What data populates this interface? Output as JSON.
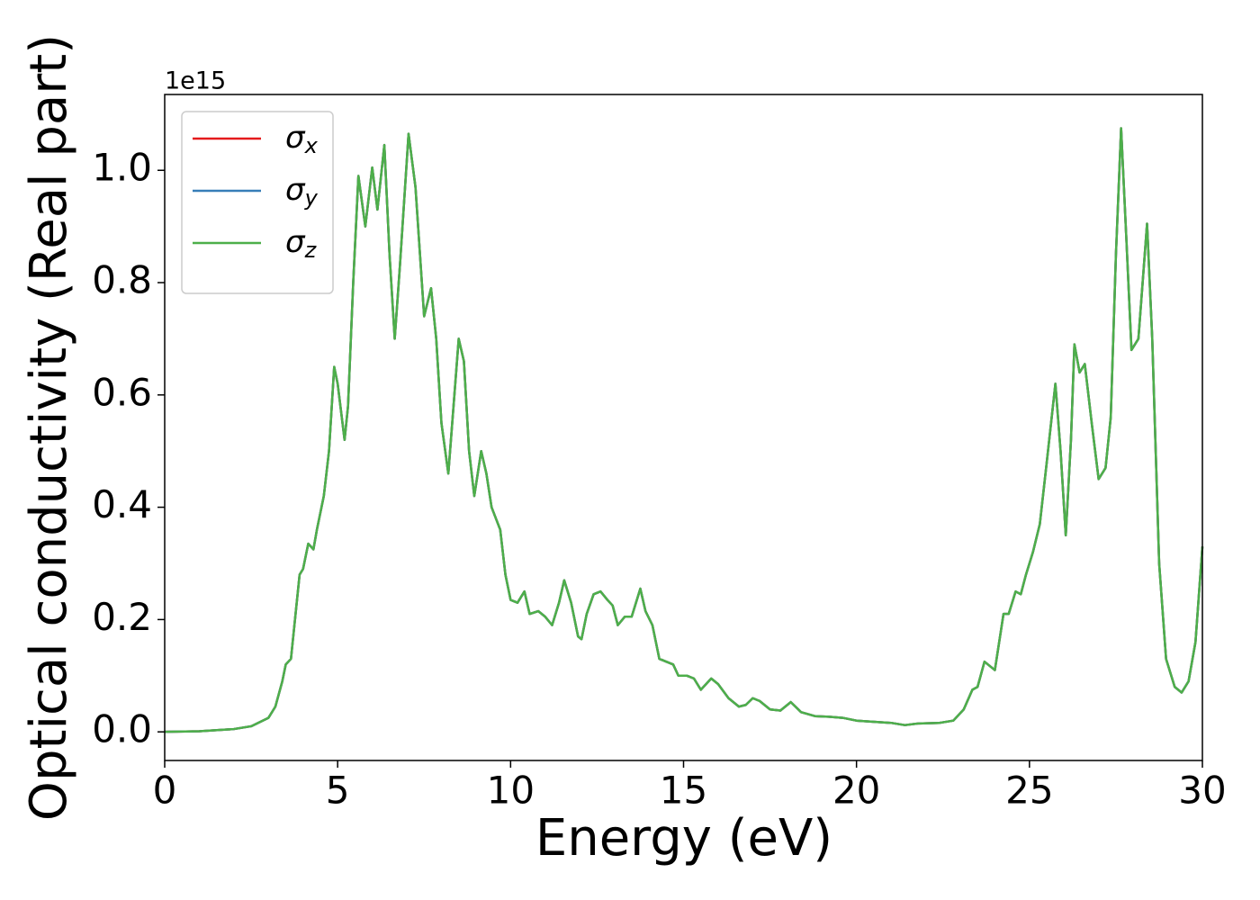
{
  "chart_data": {
    "type": "line",
    "xlabel": "Energy (eV)",
    "ylabel": "Optical conductivity (Real part)",
    "y_offset_text": "1e15",
    "xlim": [
      0,
      30
    ],
    "ylim": [
      -0.051,
      1.135
    ],
    "xticks": [
      0,
      5,
      10,
      15,
      20,
      25,
      30
    ],
    "yticks": [
      {
        "value": 0,
        "label": "0.0"
      },
      0.2,
      0.4,
      0.6,
      0.8,
      {
        "value": 1,
        "label": "1.0"
      }
    ],
    "legend": "upper left",
    "grid": false,
    "x": [
      0,
      1,
      2,
      2.5,
      3.0,
      3.2,
      3.4,
      3.5,
      3.65,
      3.8,
      3.9,
      4.0,
      4.15,
      4.3,
      4.4,
      4.6,
      4.75,
      4.9,
      5.0,
      5.2,
      5.3,
      5.45,
      5.6,
      5.8,
      6.0,
      6.15,
      6.35,
      6.5,
      6.65,
      6.8,
      7.05,
      7.25,
      7.5,
      7.7,
      7.85,
      8.0,
      8.2,
      8.35,
      8.5,
      8.65,
      8.8,
      8.95,
      9.15,
      9.3,
      9.45,
      9.7,
      9.85,
      10.0,
      10.2,
      10.4,
      10.55,
      10.8,
      11.0,
      11.2,
      11.4,
      11.55,
      11.75,
      11.95,
      12.05,
      12.2,
      12.4,
      12.6,
      12.8,
      12.95,
      13.1,
      13.3,
      13.5,
      13.75,
      13.9,
      14.1,
      14.3,
      14.5,
      14.7,
      14.85,
      15.1,
      15.3,
      15.5,
      15.8,
      16.0,
      16.3,
      16.6,
      16.8,
      17.0,
      17.2,
      17.5,
      17.8,
      18.1,
      18.4,
      18.8,
      19.2,
      19.6,
      20.0,
      20.5,
      21.0,
      21.4,
      21.8,
      22.4,
      22.8,
      23.1,
      23.35,
      23.5,
      23.7,
      23.9,
      24.0,
      24.25,
      24.4,
      24.6,
      24.75,
      24.9,
      25.1,
      25.3,
      25.5,
      25.75,
      25.9,
      26.05,
      26.2,
      26.3,
      26.45,
      26.6,
      26.8,
      27.0,
      27.2,
      27.35,
      27.5,
      27.65,
      27.8,
      27.95,
      28.15,
      28.4,
      28.55,
      28.75,
      28.95,
      29.2,
      29.4,
      29.6,
      29.8,
      30.0
    ],
    "series": [
      {
        "name": "σx",
        "color": "#e41a1c",
        "values": [
          0,
          0.001,
          0.005,
          0.01,
          0.025,
          0.045,
          0.09,
          0.12,
          0.13,
          0.22,
          0.28,
          0.29,
          0.335,
          0.325,
          0.36,
          0.42,
          0.5,
          0.65,
          0.62,
          0.52,
          0.58,
          0.8,
          0.99,
          0.9,
          1.005,
          0.93,
          1.045,
          0.85,
          0.7,
          0.83,
          1.065,
          0.97,
          0.74,
          0.79,
          0.7,
          0.55,
          0.46,
          0.58,
          0.7,
          0.66,
          0.5,
          0.42,
          0.5,
          0.46,
          0.4,
          0.36,
          0.28,
          0.235,
          0.23,
          0.25,
          0.21,
          0.215,
          0.205,
          0.19,
          0.23,
          0.27,
          0.23,
          0.17,
          0.165,
          0.21,
          0.245,
          0.25,
          0.235,
          0.225,
          0.19,
          0.205,
          0.205,
          0.255,
          0.215,
          0.19,
          0.13,
          0.125,
          0.12,
          0.1,
          0.1,
          0.095,
          0.075,
          0.095,
          0.085,
          0.06,
          0.045,
          0.048,
          0.06,
          0.055,
          0.04,
          0.038,
          0.053,
          0.035,
          0.028,
          0.027,
          0.025,
          0.02,
          0.018,
          0.016,
          0.012,
          0.015,
          0.016,
          0.02,
          0.04,
          0.075,
          0.08,
          0.125,
          0.115,
          0.11,
          0.21,
          0.21,
          0.25,
          0.245,
          0.28,
          0.32,
          0.37,
          0.48,
          0.62,
          0.5,
          0.35,
          0.52,
          0.69,
          0.64,
          0.655,
          0.55,
          0.45,
          0.47,
          0.56,
          0.85,
          1.075,
          0.88,
          0.68,
          0.7,
          0.905,
          0.7,
          0.3,
          0.13,
          0.08,
          0.07,
          0.09,
          0.16,
          0.33
        ]
      },
      {
        "name": "σy",
        "color": "#377eb8",
        "values": [
          0,
          0.001,
          0.005,
          0.01,
          0.025,
          0.045,
          0.09,
          0.12,
          0.13,
          0.22,
          0.28,
          0.29,
          0.335,
          0.325,
          0.36,
          0.42,
          0.5,
          0.65,
          0.62,
          0.52,
          0.58,
          0.8,
          0.99,
          0.9,
          1.005,
          0.93,
          1.045,
          0.85,
          0.7,
          0.83,
          1.065,
          0.97,
          0.74,
          0.79,
          0.7,
          0.55,
          0.46,
          0.58,
          0.7,
          0.66,
          0.5,
          0.42,
          0.5,
          0.46,
          0.4,
          0.36,
          0.28,
          0.235,
          0.23,
          0.25,
          0.21,
          0.215,
          0.205,
          0.19,
          0.23,
          0.27,
          0.23,
          0.17,
          0.165,
          0.21,
          0.245,
          0.25,
          0.235,
          0.225,
          0.19,
          0.205,
          0.205,
          0.255,
          0.215,
          0.19,
          0.13,
          0.125,
          0.12,
          0.1,
          0.1,
          0.095,
          0.075,
          0.095,
          0.085,
          0.06,
          0.045,
          0.048,
          0.06,
          0.055,
          0.04,
          0.038,
          0.053,
          0.035,
          0.028,
          0.027,
          0.025,
          0.02,
          0.018,
          0.016,
          0.012,
          0.015,
          0.016,
          0.02,
          0.04,
          0.075,
          0.08,
          0.125,
          0.115,
          0.11,
          0.21,
          0.21,
          0.25,
          0.245,
          0.28,
          0.32,
          0.37,
          0.48,
          0.62,
          0.5,
          0.35,
          0.52,
          0.69,
          0.64,
          0.655,
          0.55,
          0.45,
          0.47,
          0.56,
          0.85,
          1.075,
          0.88,
          0.68,
          0.7,
          0.905,
          0.7,
          0.3,
          0.13,
          0.08,
          0.07,
          0.09,
          0.16,
          0.33
        ]
      },
      {
        "name": "σz",
        "color": "#4daf4a",
        "values": [
          0,
          0.001,
          0.005,
          0.01,
          0.025,
          0.045,
          0.09,
          0.12,
          0.13,
          0.22,
          0.28,
          0.29,
          0.335,
          0.325,
          0.36,
          0.42,
          0.5,
          0.65,
          0.62,
          0.52,
          0.58,
          0.8,
          0.99,
          0.9,
          1.005,
          0.93,
          1.045,
          0.85,
          0.7,
          0.83,
          1.065,
          0.97,
          0.74,
          0.79,
          0.7,
          0.55,
          0.46,
          0.58,
          0.7,
          0.66,
          0.5,
          0.42,
          0.5,
          0.46,
          0.4,
          0.36,
          0.28,
          0.235,
          0.23,
          0.25,
          0.21,
          0.215,
          0.205,
          0.19,
          0.23,
          0.27,
          0.23,
          0.17,
          0.165,
          0.21,
          0.245,
          0.25,
          0.235,
          0.225,
          0.19,
          0.205,
          0.205,
          0.255,
          0.215,
          0.19,
          0.13,
          0.125,
          0.12,
          0.1,
          0.1,
          0.095,
          0.075,
          0.095,
          0.085,
          0.06,
          0.045,
          0.048,
          0.06,
          0.055,
          0.04,
          0.038,
          0.053,
          0.035,
          0.028,
          0.027,
          0.025,
          0.02,
          0.018,
          0.016,
          0.012,
          0.015,
          0.016,
          0.02,
          0.04,
          0.075,
          0.08,
          0.125,
          0.115,
          0.11,
          0.21,
          0.21,
          0.25,
          0.245,
          0.28,
          0.32,
          0.37,
          0.48,
          0.62,
          0.5,
          0.35,
          0.52,
          0.69,
          0.64,
          0.655,
          0.55,
          0.45,
          0.47,
          0.56,
          0.85,
          1.075,
          0.88,
          0.68,
          0.7,
          0.905,
          0.7,
          0.3,
          0.13,
          0.08,
          0.07,
          0.09,
          0.16,
          0.33
        ]
      }
    ]
  }
}
